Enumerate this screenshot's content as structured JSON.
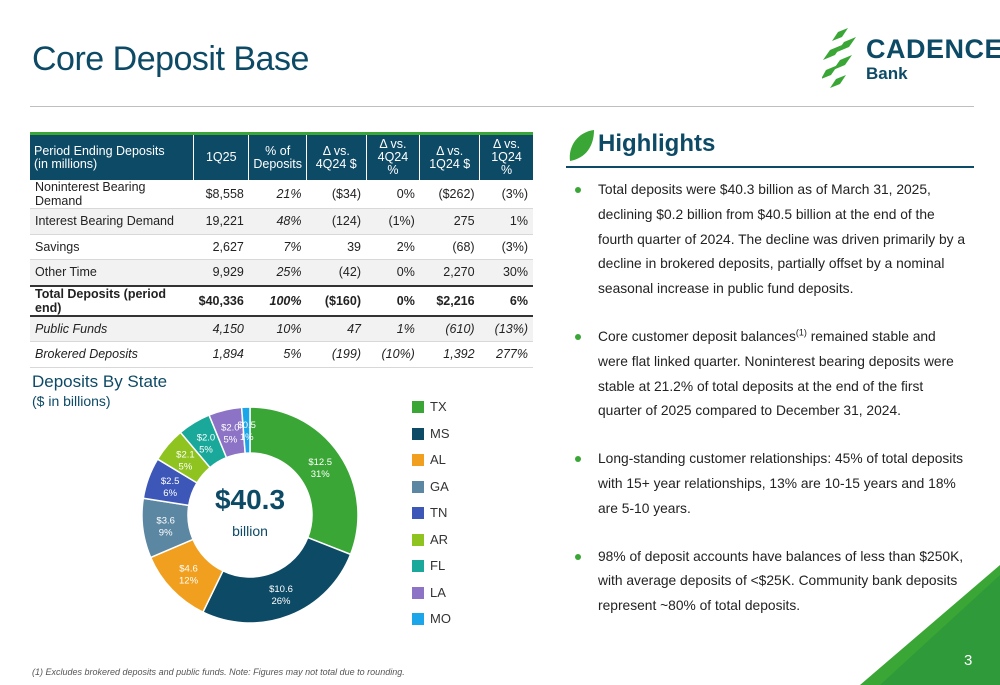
{
  "slide": {
    "title": "Core Deposit Base",
    "page_number": "3",
    "footnote": "(1) Excludes brokered deposits and public funds. Note: Figures may not total due to rounding."
  },
  "logo": {
    "word": "CADENCE",
    "sub": "Bank"
  },
  "table": {
    "headers": [
      "Period Ending Deposits\n(in millions)",
      "1Q25",
      "% of\nDeposits",
      "Δ vs.\n4Q24 $",
      "Δ vs.\n4Q24 %",
      "Δ vs.\n1Q24 $",
      "Δ vs.\n1Q24 %"
    ],
    "rows": [
      {
        "label": "Noninterest Bearing Demand",
        "v1q25": "$8,558",
        "pct": "21%",
        "d4q_usd": "($34)",
        "d4q_pct": "0%",
        "d1q_usd": "($262)",
        "d1q_pct": "(3%)"
      },
      {
        "label": "Interest Bearing Demand",
        "v1q25": "19,221",
        "pct": "48%",
        "d4q_usd": "(124)",
        "d4q_pct": "(1%)",
        "d1q_usd": "275",
        "d1q_pct": "1%"
      },
      {
        "label": "Savings",
        "v1q25": "2,627",
        "pct": "7%",
        "d4q_usd": "39",
        "d4q_pct": "2%",
        "d1q_usd": "(68)",
        "d1q_pct": "(3%)"
      },
      {
        "label": "Other Time",
        "v1q25": "9,929",
        "pct": "25%",
        "d4q_usd": "(42)",
        "d4q_pct": "0%",
        "d1q_usd": "2,270",
        "d1q_pct": "30%"
      },
      {
        "label": "Total Deposits (period end)",
        "v1q25": "$40,336",
        "pct": "100%",
        "d4q_usd": "($160)",
        "d4q_pct": "0%",
        "d1q_usd": "$2,216",
        "d1q_pct": "6%"
      },
      {
        "label": "Public Funds",
        "v1q25": "4,150",
        "pct": "10%",
        "d4q_usd": "47",
        "d4q_pct": "1%",
        "d1q_usd": "(610)",
        "d1q_pct": "(13%)"
      },
      {
        "label": "Brokered Deposits",
        "v1q25": "1,894",
        "pct": "5%",
        "d4q_usd": "(199)",
        "d4q_pct": "(10%)",
        "d1q_usd": "1,392",
        "d1q_pct": "277%"
      }
    ]
  },
  "chart_data": {
    "type": "pie",
    "title": "Deposits By State",
    "subtitle": "($ in billions)",
    "center_value": "$40.3",
    "center_label": "billion",
    "slices": [
      {
        "name": "TX",
        "value": 12.5,
        "label_value": "$12.5",
        "label_pct": "31%",
        "color": "#3aa635"
      },
      {
        "name": "MS",
        "value": 10.6,
        "label_value": "$10.6",
        "label_pct": "26%",
        "color": "#0d4a66"
      },
      {
        "name": "AL",
        "value": 4.6,
        "label_value": "$4.6",
        "label_pct": "12%",
        "color": "#f0a01e"
      },
      {
        "name": "GA",
        "value": 3.6,
        "label_value": "$3.6",
        "label_pct": "9%",
        "color": "#5b87a3"
      },
      {
        "name": "TN",
        "value": 2.5,
        "label_value": "$2.5",
        "label_pct": "6%",
        "color": "#3d57b8"
      },
      {
        "name": "AR",
        "value": 2.1,
        "label_value": "$2.1",
        "label_pct": "5%",
        "color": "#8fc31f"
      },
      {
        "name": "FL",
        "value": 2.0,
        "label_value": "$2.0",
        "label_pct": "5%",
        "color": "#19a89a"
      },
      {
        "name": "LA",
        "value": 2.0,
        "label_value": "$2.0",
        "label_pct": "5%",
        "color": "#8c73c5"
      },
      {
        "name": "MO",
        "value": 0.5,
        "label_value": "$0.5",
        "label_pct": "1%",
        "color": "#1aa6e8"
      }
    ]
  },
  "highlights": {
    "title": "Highlights",
    "bullets": [
      {
        "text": "Total deposits were $40.3 billion as of March 31, 2025, declining $0.2 billion from $40.5 billion at the end of the fourth quarter of 2024.  The decline was driven primarily by a decline in brokered deposits, partially offset by a nominal seasonal increase in public fund deposits."
      },
      {
        "pre": "Core customer deposit balances",
        "sup": "(1)",
        "post": " remained stable and were flat linked quarter. Noninterest bearing deposits were stable at 21.2% of total deposits at the end of the first quarter of 2025 compared to December 31, 2024."
      },
      {
        "text": "Long-standing customer relationships: 45% of total deposits with 15+ year relationships, 13% are 10-15 years and 18% are 5-10 years."
      },
      {
        "text": "98% of deposit accounts have balances of less than $250K, with average deposits of <$25K.  Community bank deposits represent ~80% of total deposits."
      }
    ]
  },
  "colors": {
    "navy": "#0d4a66",
    "green": "#3aa635"
  }
}
